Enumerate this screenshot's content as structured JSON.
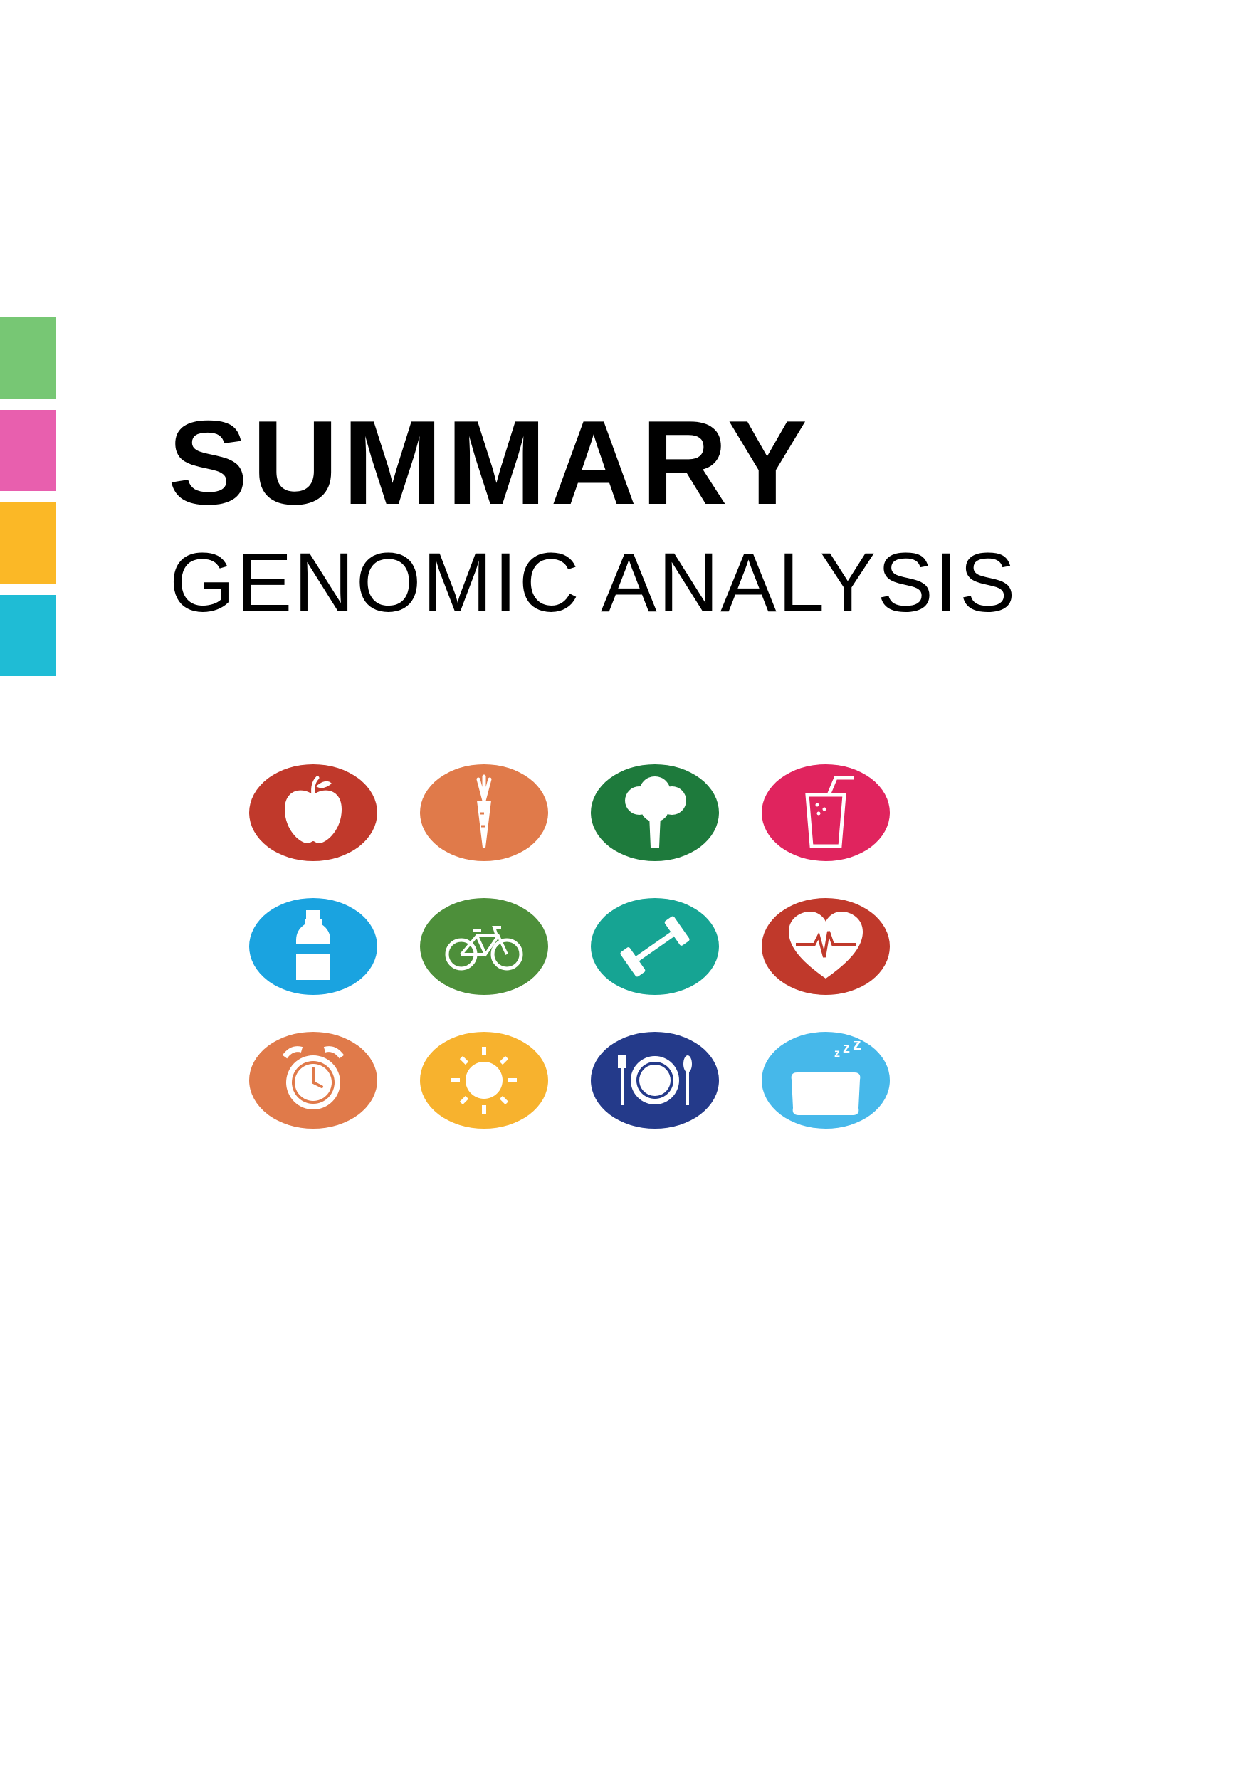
{
  "title": {
    "main": "SUMMARY",
    "subtitle": "GENOMIC ANALYSIS"
  },
  "side_bar_colors": [
    "#77c774",
    "#e85fae",
    "#fbb826",
    "#1fbcd5"
  ],
  "icons": [
    {
      "name": "apple-icon",
      "color": "#c0392b"
    },
    {
      "name": "carrot-icon",
      "color": "#e07a4a"
    },
    {
      "name": "broccoli-icon",
      "color": "#1e7a3c"
    },
    {
      "name": "juice-icon",
      "color": "#e0245e"
    },
    {
      "name": "water-bottle-icon",
      "color": "#1aa3e0"
    },
    {
      "name": "bicycle-icon",
      "color": "#4d8f3a"
    },
    {
      "name": "dumbbell-icon",
      "color": "#16a493"
    },
    {
      "name": "heart-rate-icon",
      "color": "#c0392b"
    },
    {
      "name": "alarm-clock-icon",
      "color": "#e07a4a"
    },
    {
      "name": "sun-icon",
      "color": "#f7b22e"
    },
    {
      "name": "plate-icon",
      "color": "#243a8a"
    },
    {
      "name": "pillow-sleep-icon",
      "color": "#46b8ea"
    }
  ]
}
